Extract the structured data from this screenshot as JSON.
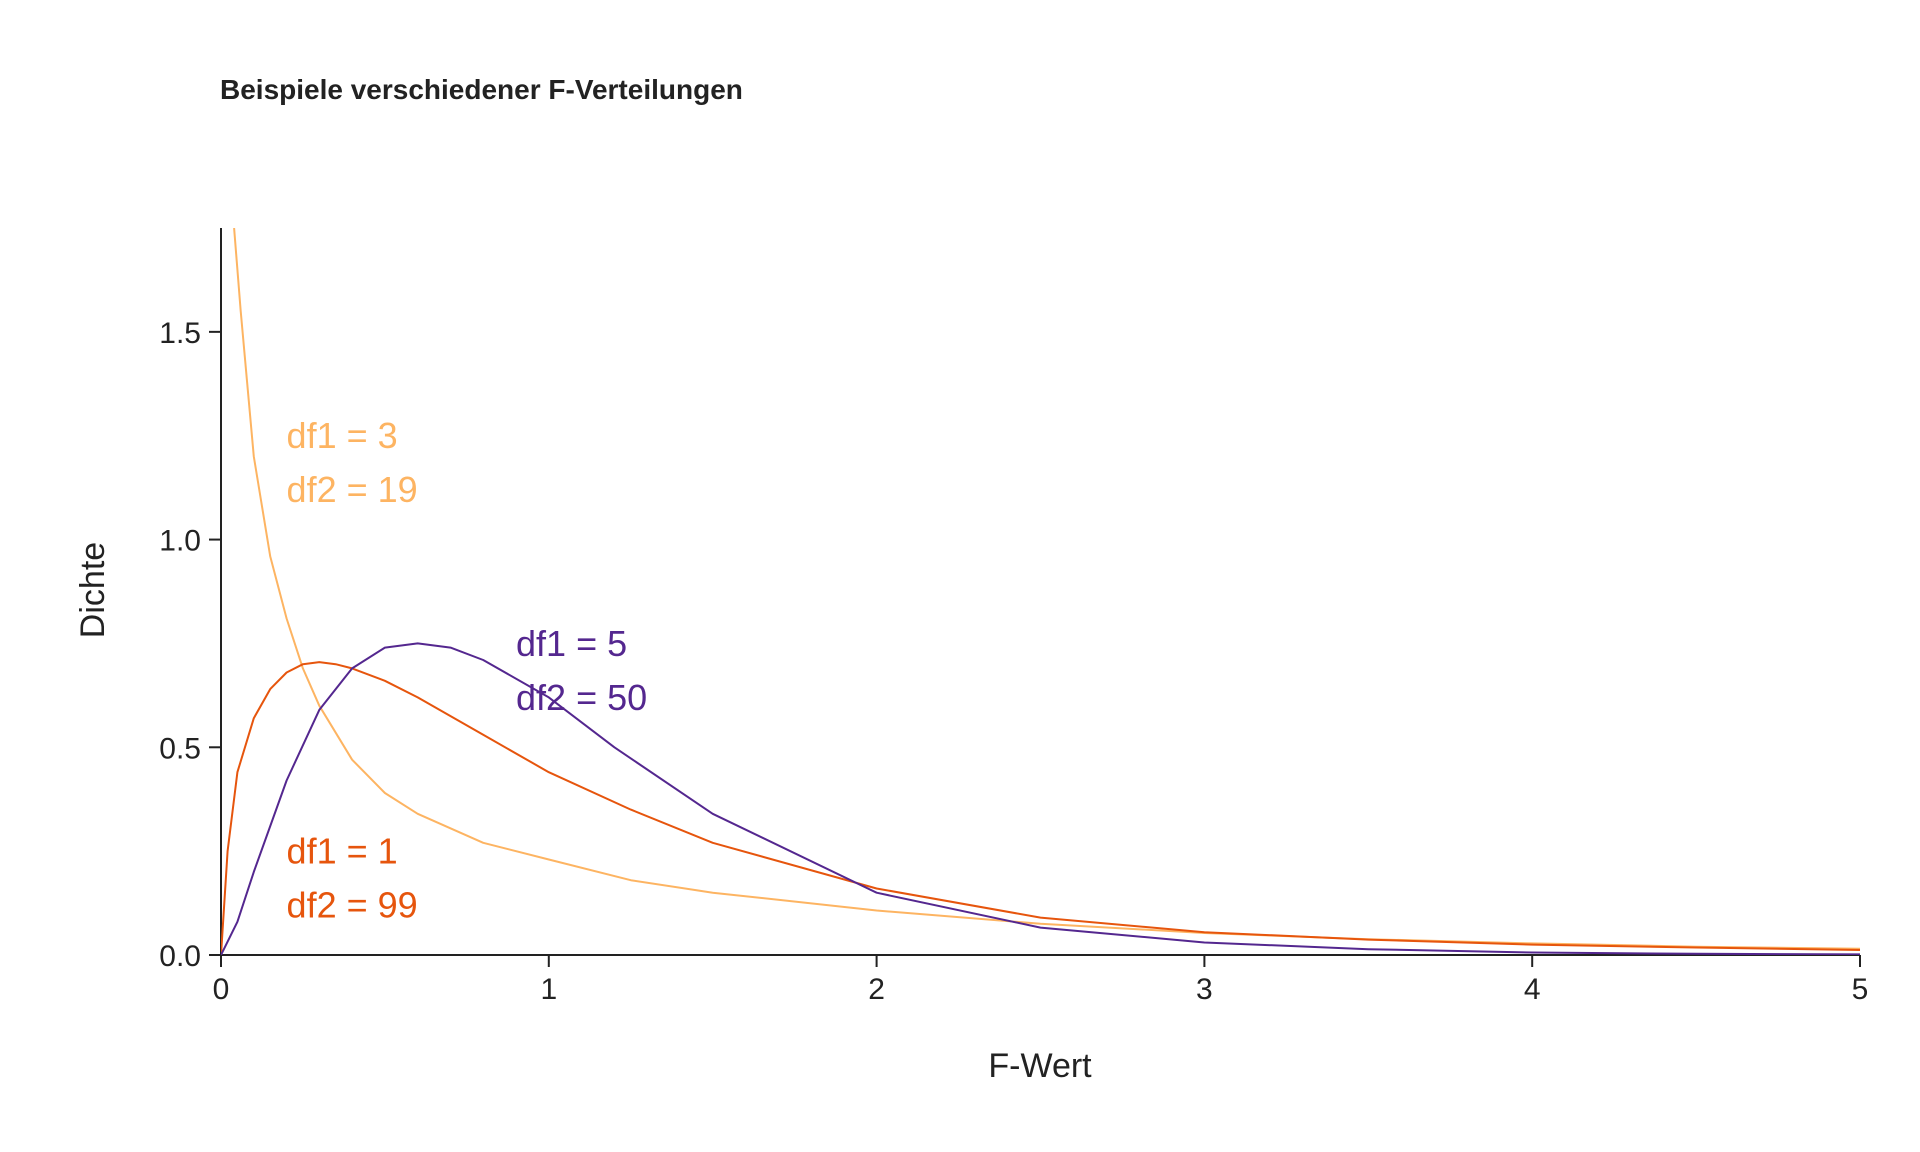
{
  "chart_data": {
    "type": "line",
    "title": "Beispiele verschiedener F-Verteilungen",
    "xlabel": "F-Wert",
    "ylabel": "Dichte",
    "xlim": [
      0,
      5
    ],
    "ylim": [
      0,
      1.75
    ],
    "x_ticks": [
      "0",
      "1",
      "2",
      "3",
      "4",
      "5"
    ],
    "y_ticks": [
      "0.0",
      "0.5",
      "1.0",
      "1.5"
    ],
    "grid": false,
    "legend": "none",
    "series": [
      {
        "df1": 3,
        "df2": 19,
        "color": "#FDB462",
        "label_lines": [
          "df1 = 3",
          "df2 = 19"
        ],
        "x": [
          0.04,
          0.06,
          0.1,
          0.15,
          0.2,
          0.25,
          0.3,
          0.4,
          0.5,
          0.6,
          0.8,
          1.0,
          1.25,
          1.5,
          2.0,
          2.5,
          3.0,
          3.5,
          4.0,
          4.5,
          5.0
        ],
        "y": [
          1.75,
          1.55,
          1.2,
          0.96,
          0.81,
          0.69,
          0.6,
          0.47,
          0.39,
          0.34,
          0.27,
          0.23,
          0.18,
          0.15,
          0.107,
          0.075,
          0.053,
          0.038,
          0.028,
          0.02,
          0.015
        ]
      },
      {
        "df1": 1,
        "df2": 99,
        "color": "#E6550D",
        "label_lines": [
          "df1 = 1",
          "df2 = 99"
        ],
        "x": [
          0,
          0.02,
          0.05,
          0.1,
          0.15,
          0.2,
          0.25,
          0.3,
          0.35,
          0.4,
          0.5,
          0.6,
          0.8,
          1.0,
          1.25,
          1.5,
          2.0,
          2.5,
          3.0,
          3.5,
          4.0,
          4.5,
          5.0
        ],
        "y": [
          0,
          0.25,
          0.44,
          0.57,
          0.64,
          0.68,
          0.7,
          0.705,
          0.7,
          0.69,
          0.66,
          0.62,
          0.53,
          0.44,
          0.35,
          0.27,
          0.16,
          0.09,
          0.055,
          0.037,
          0.025,
          0.018,
          0.012
        ]
      },
      {
        "df1": 5,
        "df2": 50,
        "color": "#54278F",
        "label_lines": [
          "df1 = 5",
          "df2 = 50"
        ],
        "x": [
          0,
          0.05,
          0.1,
          0.2,
          0.3,
          0.4,
          0.5,
          0.6,
          0.7,
          0.8,
          1.0,
          1.2,
          1.5,
          2.0,
          2.5,
          3.0,
          3.5,
          4.0,
          4.5,
          5.0
        ],
        "y": [
          0,
          0.08,
          0.2,
          0.42,
          0.59,
          0.69,
          0.74,
          0.75,
          0.74,
          0.71,
          0.62,
          0.5,
          0.34,
          0.15,
          0.066,
          0.03,
          0.014,
          0.006,
          0.003,
          0.0015
        ]
      }
    ]
  }
}
